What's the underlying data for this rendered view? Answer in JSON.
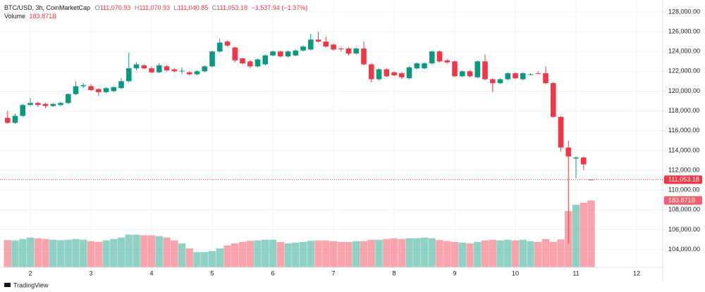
{
  "chart_data": {
    "type": "candlestick",
    "title": "BTC/USD, 3h, CoinMarketCap",
    "ohlc_header": [
      {
        "key": "O",
        "text": "111,070.93"
      },
      {
        "key": "H",
        "text": "111,070.93"
      },
      {
        "key": "L",
        "text": "111,040.85"
      },
      {
        "key": "C",
        "text": "111,053.18"
      }
    ],
    "change": "−1,537.94 (−1.37%)",
    "volume_legend": {
      "name": "Volume",
      "text": "183.871B"
    },
    "brand": "TradingView",
    "up_color": "#089981",
    "down_color": "#f23645",
    "grid": true,
    "x": [
      1.625,
      1.75,
      1.875,
      2,
      2.125,
      2.25,
      2.375,
      2.5,
      2.625,
      2.75,
      2.875,
      3,
      3.125,
      3.25,
      3.375,
      3.5,
      3.625,
      3.75,
      3.875,
      4,
      4.125,
      4.25,
      4.375,
      4.5,
      4.625,
      4.75,
      4.875,
      5,
      5.125,
      5.25,
      5.375,
      5.5,
      5.625,
      5.75,
      5.875,
      6,
      6.125,
      6.25,
      6.375,
      6.5,
      6.625,
      6.75,
      6.875,
      7,
      7.125,
      7.25,
      7.375,
      7.5,
      7.625,
      7.75,
      7.875,
      8,
      8.125,
      8.25,
      8.375,
      8.5,
      8.625,
      8.75,
      8.875,
      9,
      9.125,
      9.25,
      9.375,
      9.5,
      9.625,
      9.75,
      9.875,
      10,
      10.125,
      10.25,
      10.375,
      10.5,
      10.625,
      10.75,
      10.875,
      11,
      11.125,
      11.25
    ],
    "open": [
      117300,
      116800,
      117500,
      118600,
      118800,
      118700,
      118500,
      118600,
      118800,
      119700,
      120500,
      120500,
      120200,
      119900,
      120000,
      120300,
      121000,
      122300,
      122600,
      122300,
      121900,
      122500,
      122200,
      122000,
      121900,
      121700,
      122000,
      122500,
      124000,
      125000,
      124400,
      123300,
      123000,
      122500,
      122700,
      123600,
      124000,
      123500,
      123600,
      124100,
      124200,
      125200,
      125000,
      124700,
      124300,
      124300,
      123800,
      124300,
      122700,
      121200,
      122200,
      121900,
      121800,
      121300,
      122300,
      122300,
      122800,
      124000,
      123100,
      123000,
      121500,
      122000,
      121400,
      123000,
      121200,
      120800,
      121200,
      121800,
      121200,
      121700,
      121800,
      121800,
      120800,
      117400,
      114300,
      113200,
      113300,
      111070.93
    ],
    "high": [
      118000,
      117700,
      118700,
      119300,
      118900,
      118800,
      118800,
      118900,
      119800,
      121000,
      120800,
      120700,
      120300,
      120400,
      120500,
      121300,
      123900,
      122900,
      122700,
      122500,
      122800,
      122600,
      122300,
      122400,
      122000,
      122100,
      122600,
      124100,
      125300,
      125100,
      124500,
      123400,
      123100,
      123300,
      123700,
      124100,
      124100,
      124100,
      124200,
      124600,
      125800,
      126000,
      125500,
      124800,
      124400,
      124400,
      124400,
      125000,
      122800,
      122300,
      122300,
      122000,
      121900,
      122500,
      122900,
      122900,
      124100,
      124100,
      123200,
      123100,
      122100,
      122100,
      123100,
      123700,
      121300,
      121300,
      121900,
      121900,
      121900,
      121800,
      122000,
      122500,
      120900,
      117500,
      115000,
      113400,
      113400,
      111070.93
    ],
    "low": [
      116700,
      116700,
      117400,
      118500,
      118400,
      118300,
      118400,
      118500,
      118700,
      119600,
      120300,
      120000,
      119500,
      119800,
      119900,
      120200,
      120900,
      122100,
      122200,
      121800,
      121800,
      122000,
      121900,
      121700,
      121600,
      121600,
      121900,
      122400,
      123900,
      124500,
      122900,
      122700,
      122300,
      122400,
      122600,
      123500,
      123400,
      123400,
      123500,
      124000,
      124100,
      124900,
      124400,
      124100,
      124000,
      123600,
      123700,
      122600,
      120900,
      121100,
      121400,
      121500,
      121200,
      121200,
      122200,
      122200,
      122700,
      122900,
      122800,
      121400,
      121400,
      121400,
      121300,
      121100,
      119900,
      120700,
      121100,
      121200,
      121100,
      121600,
      121700,
      120700,
      117300,
      113900,
      104600,
      111200,
      112000,
      111040.85
    ],
    "close": [
      116800,
      117500,
      118600,
      118800,
      118600,
      118500,
      118700,
      118800,
      119700,
      120500,
      120600,
      120100,
      119900,
      120300,
      120400,
      121000,
      122300,
      122700,
      122300,
      121900,
      122600,
      122100,
      122000,
      122050,
      121700,
      122000,
      122500,
      124000,
      124900,
      124600,
      123100,
      122800,
      122500,
      123200,
      123600,
      124000,
      123500,
      124000,
      124100,
      124500,
      125200,
      125000,
      124500,
      124200,
      124250,
      123800,
      124300,
      122700,
      121200,
      122200,
      121500,
      121600,
      121400,
      122400,
      122800,
      122800,
      124000,
      123000,
      122900,
      121500,
      122000,
      121500,
      123000,
      121200,
      120800,
      121200,
      121800,
      121300,
      121800,
      121700,
      121750,
      120800,
      117400,
      114300,
      113400,
      113300,
      112600,
      111053.18
    ],
    "volume": [
      75,
      74,
      78,
      82,
      80,
      78,
      76,
      75,
      76,
      78,
      76,
      72,
      70,
      74,
      78,
      82,
      90,
      90,
      88,
      88,
      86,
      82,
      74,
      66,
      52,
      42,
      42,
      45,
      52,
      60,
      66,
      70,
      73,
      74,
      76,
      76,
      70,
      66,
      68,
      70,
      73,
      74,
      74,
      72,
      70,
      70,
      72,
      72,
      76,
      76,
      78,
      80,
      78,
      80,
      80,
      82,
      80,
      75,
      72,
      70,
      68,
      66,
      70,
      74,
      76,
      74,
      76,
      74,
      76,
      72,
      70,
      78,
      70,
      77,
      155,
      172,
      178,
      183.871
    ],
    "xlim": [
      1.5,
      12.43
    ],
    "xticks": [
      2,
      3,
      4,
      5,
      6,
      7,
      8,
      9,
      10,
      11,
      12
    ],
    "ylim": [
      102200,
      129200
    ],
    "yticks": [
      {
        "value": 104000,
        "label": "104,000.00"
      },
      {
        "value": 106000,
        "label": "106,000.00"
      },
      {
        "value": 108000,
        "label": "108,000.00"
      },
      {
        "value": 110000,
        "label": "110,000.00"
      },
      {
        "value": 112000,
        "label": "112,000.00"
      },
      {
        "value": 114000,
        "label": "114,000.00"
      },
      {
        "value": 116000,
        "label": "116,000.00"
      },
      {
        "value": 118000,
        "label": "118,000.00"
      },
      {
        "value": 120000,
        "label": "120,000.00"
      },
      {
        "value": 122000,
        "label": "122,000.00"
      },
      {
        "value": 124000,
        "label": "124,000.00"
      },
      {
        "value": 126000,
        "label": "126,000.00"
      },
      {
        "value": 128000,
        "label": "128,000.00"
      }
    ],
    "volume_lim": [
      0,
      735
    ],
    "price_tag": {
      "value": 111053.18,
      "label": "111,053.18"
    },
    "volume_tag": {
      "value": 183.871,
      "label": "183.871B"
    }
  }
}
